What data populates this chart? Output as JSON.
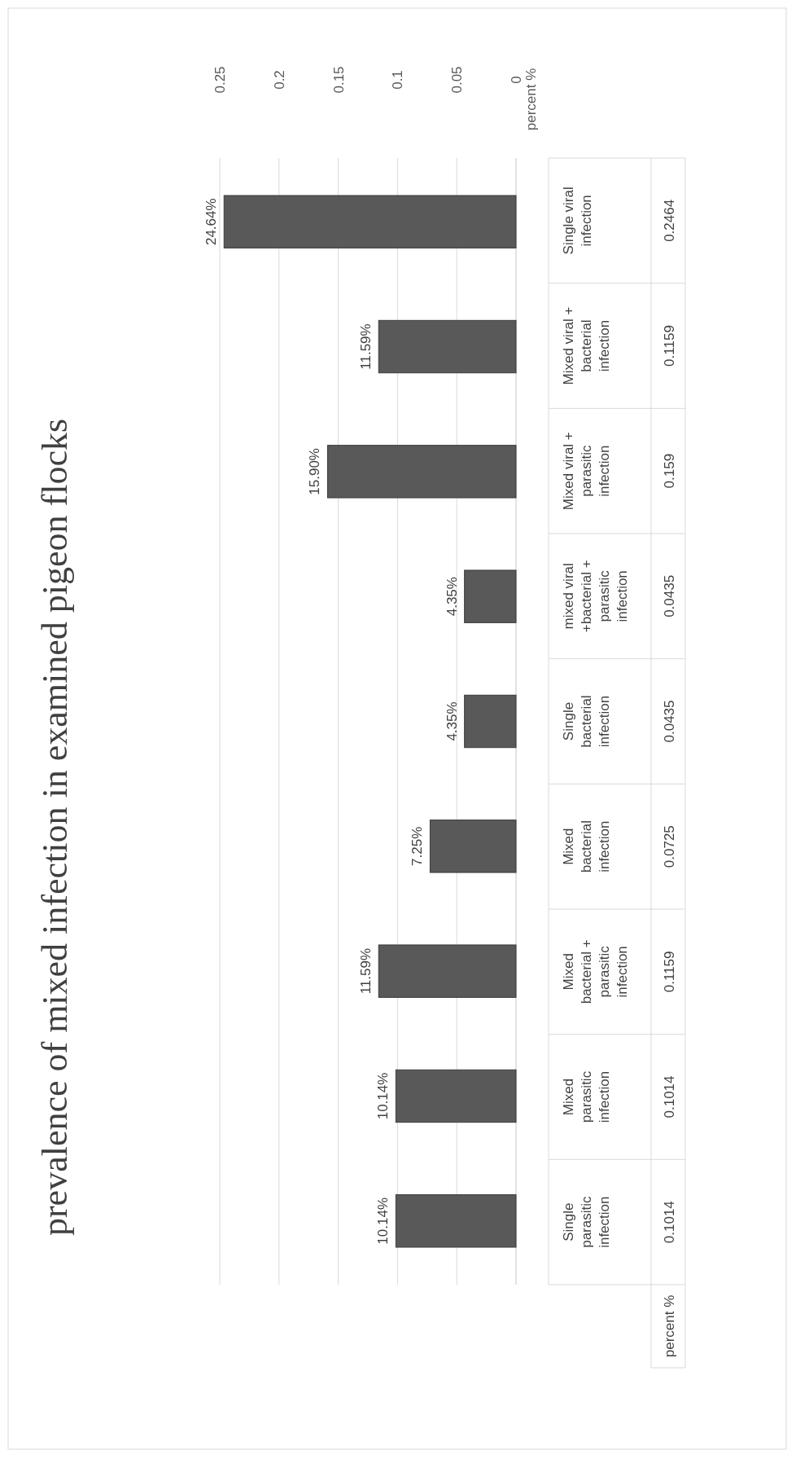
{
  "chart_data": {
    "type": "bar",
    "orientation": "horizontal",
    "title": "prevalence of mixed infection in examined pigeon flocks",
    "ylabel": "percent %",
    "categories": [
      "Single viral infection",
      "Mixed viral + bacterial infection",
      "Mixed viral + parasitic infection",
      "mixed viral +bacterial + parasitic infection",
      "Single bacterial infection",
      "Mixed bacterial infection",
      "Mixed bacterial + parasitic infection",
      "Mixed parasitic infection",
      "Single parasitic infection"
    ],
    "series": [
      {
        "name": "percent %",
        "color": "#595959",
        "values": [
          0.2464,
          0.1159,
          0.159,
          0.0435,
          0.0435,
          0.0725,
          0.1159,
          0.1014,
          0.1014
        ],
        "value_labels": [
          "24.64%",
          "11.59%",
          "15.90%",
          "4.35%",
          "4.35%",
          "7.25%",
          "11.59%",
          "10.14%",
          "10.14%"
        ]
      }
    ],
    "annotations": [
      "0.2464",
      "0.1159",
      "0.159",
      "0.0435",
      "0.0435",
      "0.0725",
      "0.1159",
      "0.1014",
      "0.1014"
    ],
    "xlim": [
      0.25,
      0
    ],
    "xticks": [
      0.25,
      0.2,
      0.15,
      0.1,
      0.05,
      0
    ],
    "grid": "x"
  }
}
